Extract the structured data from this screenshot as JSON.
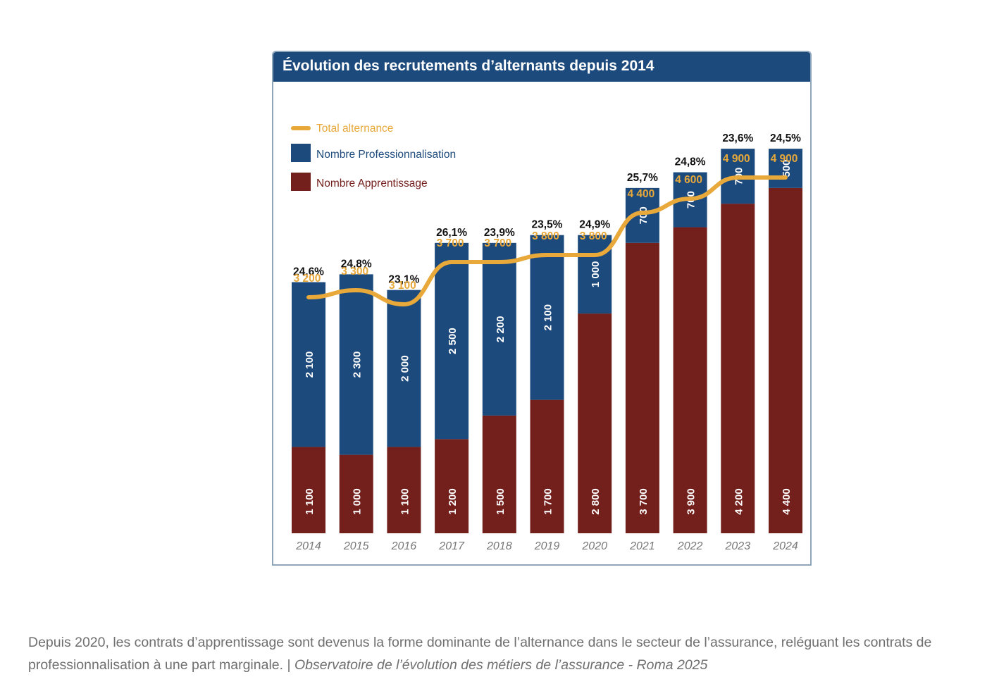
{
  "chart_data": {
    "type": "bar",
    "stacked": true,
    "title": "Évolution des recrutements d’alternants depuis 2014",
    "categories": [
      "2014",
      "2015",
      "2016",
      "2017",
      "2018",
      "2019",
      "2020",
      "2021",
      "2022",
      "2023",
      "2024"
    ],
    "series": [
      {
        "name": "Nombre Apprentissage",
        "type": "bar",
        "color": "#73201c",
        "values": [
          1100,
          1000,
          1100,
          1200,
          1500,
          1700,
          2800,
          3700,
          3900,
          4200,
          4400
        ],
        "labels": [
          "1 100",
          "1 000",
          "1 100",
          "1 200",
          "1 500",
          "1 700",
          "2 800",
          "3 700",
          "3 900",
          "4 200",
          "4 400"
        ]
      },
      {
        "name": "Nombre Professionnalisation",
        "type": "bar",
        "color": "#1c4a7c",
        "values": [
          2100,
          2300,
          2000,
          2500,
          2200,
          2100,
          1000,
          700,
          700,
          700,
          500
        ],
        "labels": [
          "2 100",
          "2 300",
          "2 000",
          "2 500",
          "2 200",
          "2 100",
          "1 000",
          "700",
          "700",
          "700",
          "500"
        ]
      },
      {
        "name": "Total alternance",
        "type": "line",
        "color": "#e8a83a",
        "values": [
          3200,
          3300,
          3100,
          3700,
          3700,
          3800,
          3800,
          4400,
          4600,
          4900,
          4900
        ],
        "labels": [
          "3 200",
          "3 300",
          "3 100",
          "3 700",
          "3 700",
          "3 800",
          "3 800",
          "4 400",
          "4 600",
          "4 900",
          "4 900"
        ]
      }
    ],
    "share_labels": [
      "24,6%",
      "24,8%",
      "23,1%",
      "26,1%",
      "23,9%",
      "23,5%",
      "24,9%",
      "25,7%",
      "24,8%",
      "23,6%",
      "24,5%"
    ],
    "legend": [
      "Total alternance",
      "Nombre Professionnalisation",
      "Nombre Apprentissage"
    ],
    "legend_position": "top-left",
    "grid": false
  },
  "caption": {
    "text": "Depuis 2020, les contrats d’apprentissage sont devenus la forme dominante de l’alternance dans le secteur de l’assurance, reléguant les contrats de professionnalisation à une part marginale. | ",
    "source": "Observatoire de l’évolution des métiers de l’assurance - Roma 2025"
  }
}
